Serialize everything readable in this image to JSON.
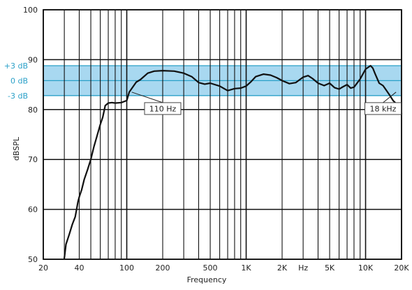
{
  "chart_data": {
    "type": "line",
    "xscale": "log",
    "xlim": [
      20,
      20000
    ],
    "ylim": [
      50,
      100
    ],
    "xlabel": "Frequency",
    "ylabel": "dBSPL",
    "x_ticks": [
      {
        "value": 20,
        "label": "20"
      },
      {
        "value": 40,
        "label": "40"
      },
      {
        "value": 100,
        "label": "100"
      },
      {
        "value": 200,
        "label": "200"
      },
      {
        "value": 500,
        "label": "500"
      },
      {
        "value": 1000,
        "label": "1K"
      },
      {
        "value": 2000,
        "label": "2K"
      },
      {
        "value": 3000,
        "label": "Hz"
      },
      {
        "value": 5000,
        "label": "5K"
      },
      {
        "value": 10000,
        "label": "10K"
      },
      {
        "value": 20000,
        "label": "20K"
      }
    ],
    "y_ticks": [
      {
        "value": 50,
        "label": "50"
      },
      {
        "value": 60,
        "label": "60"
      },
      {
        "value": 70,
        "label": "70"
      },
      {
        "value": 80,
        "label": "80"
      },
      {
        "value": 90,
        "label": "90"
      },
      {
        "value": 100,
        "label": "100"
      }
    ],
    "band": {
      "center": 85.8,
      "upper": 88.8,
      "lower": 82.8,
      "upper_label": "+3 dB",
      "center_label": "0 dB",
      "lower_label": "-3 dB",
      "fill_color": "#a8d8f0",
      "line_color": "#2aa0c8",
      "label_color": "#2aa0c8"
    },
    "annotations": [
      {
        "label": "110 Hz",
        "x": 110,
        "y": 83.5,
        "box_x": 200,
        "box_y": 80.2
      },
      {
        "label": "18 kHz",
        "x": 18000,
        "y": 83.5,
        "box_x": 14000,
        "box_y": 80.2
      }
    ],
    "grid": true,
    "line_color": "#111111",
    "series": [
      {
        "x": [
          30,
          31,
          33,
          35,
          37,
          38,
          39,
          40,
          42,
          44,
          47,
          50,
          53,
          56,
          60,
          63,
          66,
          70,
          75,
          80,
          90,
          100,
          105,
          110,
          120,
          130,
          150,
          170,
          200,
          250,
          300,
          350,
          400,
          450,
          500,
          600,
          700,
          800,
          900,
          1000,
          1100,
          1200,
          1400,
          1600,
          1800,
          2000,
          2300,
          2600,
          3000,
          3300,
          3600,
          4000,
          4500,
          5000,
          5500,
          6000,
          6500,
          7000,
          7500,
          8000,
          9000,
          10000,
          11000,
          11500,
          12000,
          13000,
          14000,
          15000,
          16000,
          17000,
          18000,
          19000,
          20000
        ],
        "y": [
          50.2,
          53.0,
          55.0,
          57.0,
          58.5,
          60.0,
          61.5,
          62.5,
          64.0,
          66.0,
          68.0,
          70.0,
          72.5,
          74.5,
          77.0,
          78.5,
          80.8,
          81.3,
          81.4,
          81.3,
          81.4,
          81.8,
          83.5,
          84.2,
          85.5,
          86.0,
          87.3,
          87.7,
          87.8,
          87.7,
          87.3,
          86.6,
          85.4,
          85.1,
          85.3,
          84.7,
          83.8,
          84.2,
          84.3,
          84.7,
          85.6,
          86.6,
          87.1,
          86.9,
          86.4,
          85.8,
          85.2,
          85.4,
          86.5,
          86.8,
          86.2,
          85.3,
          84.8,
          85.3,
          84.4,
          84.1,
          84.6,
          85.0,
          84.3,
          84.5,
          86.1,
          88.1,
          88.8,
          88.3,
          87.2,
          85.3,
          84.8,
          83.8,
          82.8,
          81.8,
          81.2,
          80.6,
          79.2
        ]
      }
    ]
  }
}
